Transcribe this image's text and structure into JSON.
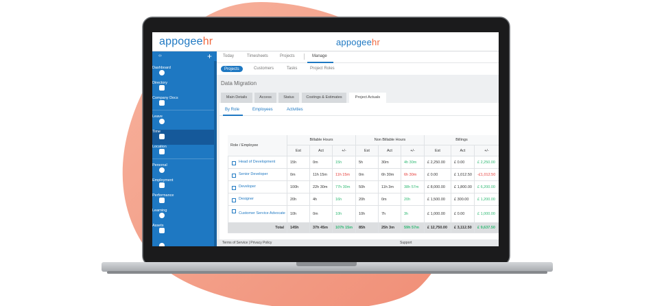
{
  "logo": {
    "main": "appogee",
    "accent": "hr"
  },
  "sidebar": {
    "items": [
      "Dashboard",
      "Directory",
      "Company Docs",
      "Leave",
      "Time",
      "Location",
      "Personal",
      "Employment",
      "Performance",
      "Learning",
      "Assets"
    ]
  },
  "top_tabs": [
    "Today",
    "Timesheets",
    "Projects",
    "Manage"
  ],
  "sub_tabs": [
    "Projects",
    "Customers",
    "Tasks",
    "Project Roles"
  ],
  "page_title": "Data Migration",
  "section_tabs": [
    "Main Details",
    "Access",
    "Status",
    "Costings & Estimates",
    "Project Actuals"
  ],
  "view_tabs": [
    "By Role",
    "Employees",
    "Activities"
  ],
  "table": {
    "row_header": "Role / Employee",
    "groups": [
      "Billable Hours",
      "Non Billable Hours",
      "Billings"
    ],
    "subheaders": [
      "Est",
      "Act",
      "+/-"
    ],
    "rows": [
      {
        "label": "Head of Development",
        "color": "#2eb872",
        "cells": [
          "15h",
          "0m",
          "15h",
          "5h",
          "30m",
          "4h 30m",
          "£ 2,250.00",
          "£ 0.00",
          "£ 2,250.00"
        ]
      },
      {
        "label": "Senior Developer",
        "color": "#e53935",
        "cells": [
          "0m",
          "11h 15m",
          "11h 15m",
          "0m",
          "6h 30m",
          "6h 30m",
          "£ 0.00",
          "£ 1,012.50",
          "-£1,012.50"
        ]
      },
      {
        "label": "Developer",
        "color": "#2eb872",
        "cells": [
          "100h",
          "22h 30m",
          "77h 30m",
          "50h",
          "11h 3m",
          "38h 57m",
          "£ 8,000.00",
          "£ 1,800.00",
          "£ 6,200.00"
        ]
      },
      {
        "label": "Designer",
        "color": "#2eb872",
        "cells": [
          "20h",
          "4h",
          "16h",
          "20h",
          "0m",
          "20h",
          "£ 1,500.00",
          "£ 300.00",
          "£ 1,200.00"
        ]
      },
      {
        "label": "Customer Service Advocate",
        "color": "#2eb872",
        "cells": [
          "10h",
          "0m",
          "10h",
          "10h",
          "7h",
          "3h",
          "£ 1,000.00",
          "£ 0.00",
          "£ 1,000.00"
        ]
      }
    ],
    "total": {
      "label": "Total",
      "color": "#2eb872",
      "cells": [
        "145h",
        "37h 45m",
        "107h 15m",
        "85h",
        "25h 3m",
        "59h 57m",
        "£ 12,750.00",
        "£ 3,112.50",
        "£ 9,637.50"
      ]
    }
  },
  "footer": {
    "left": "Terms of Service | Privacy Policy",
    "right": "Support"
  }
}
